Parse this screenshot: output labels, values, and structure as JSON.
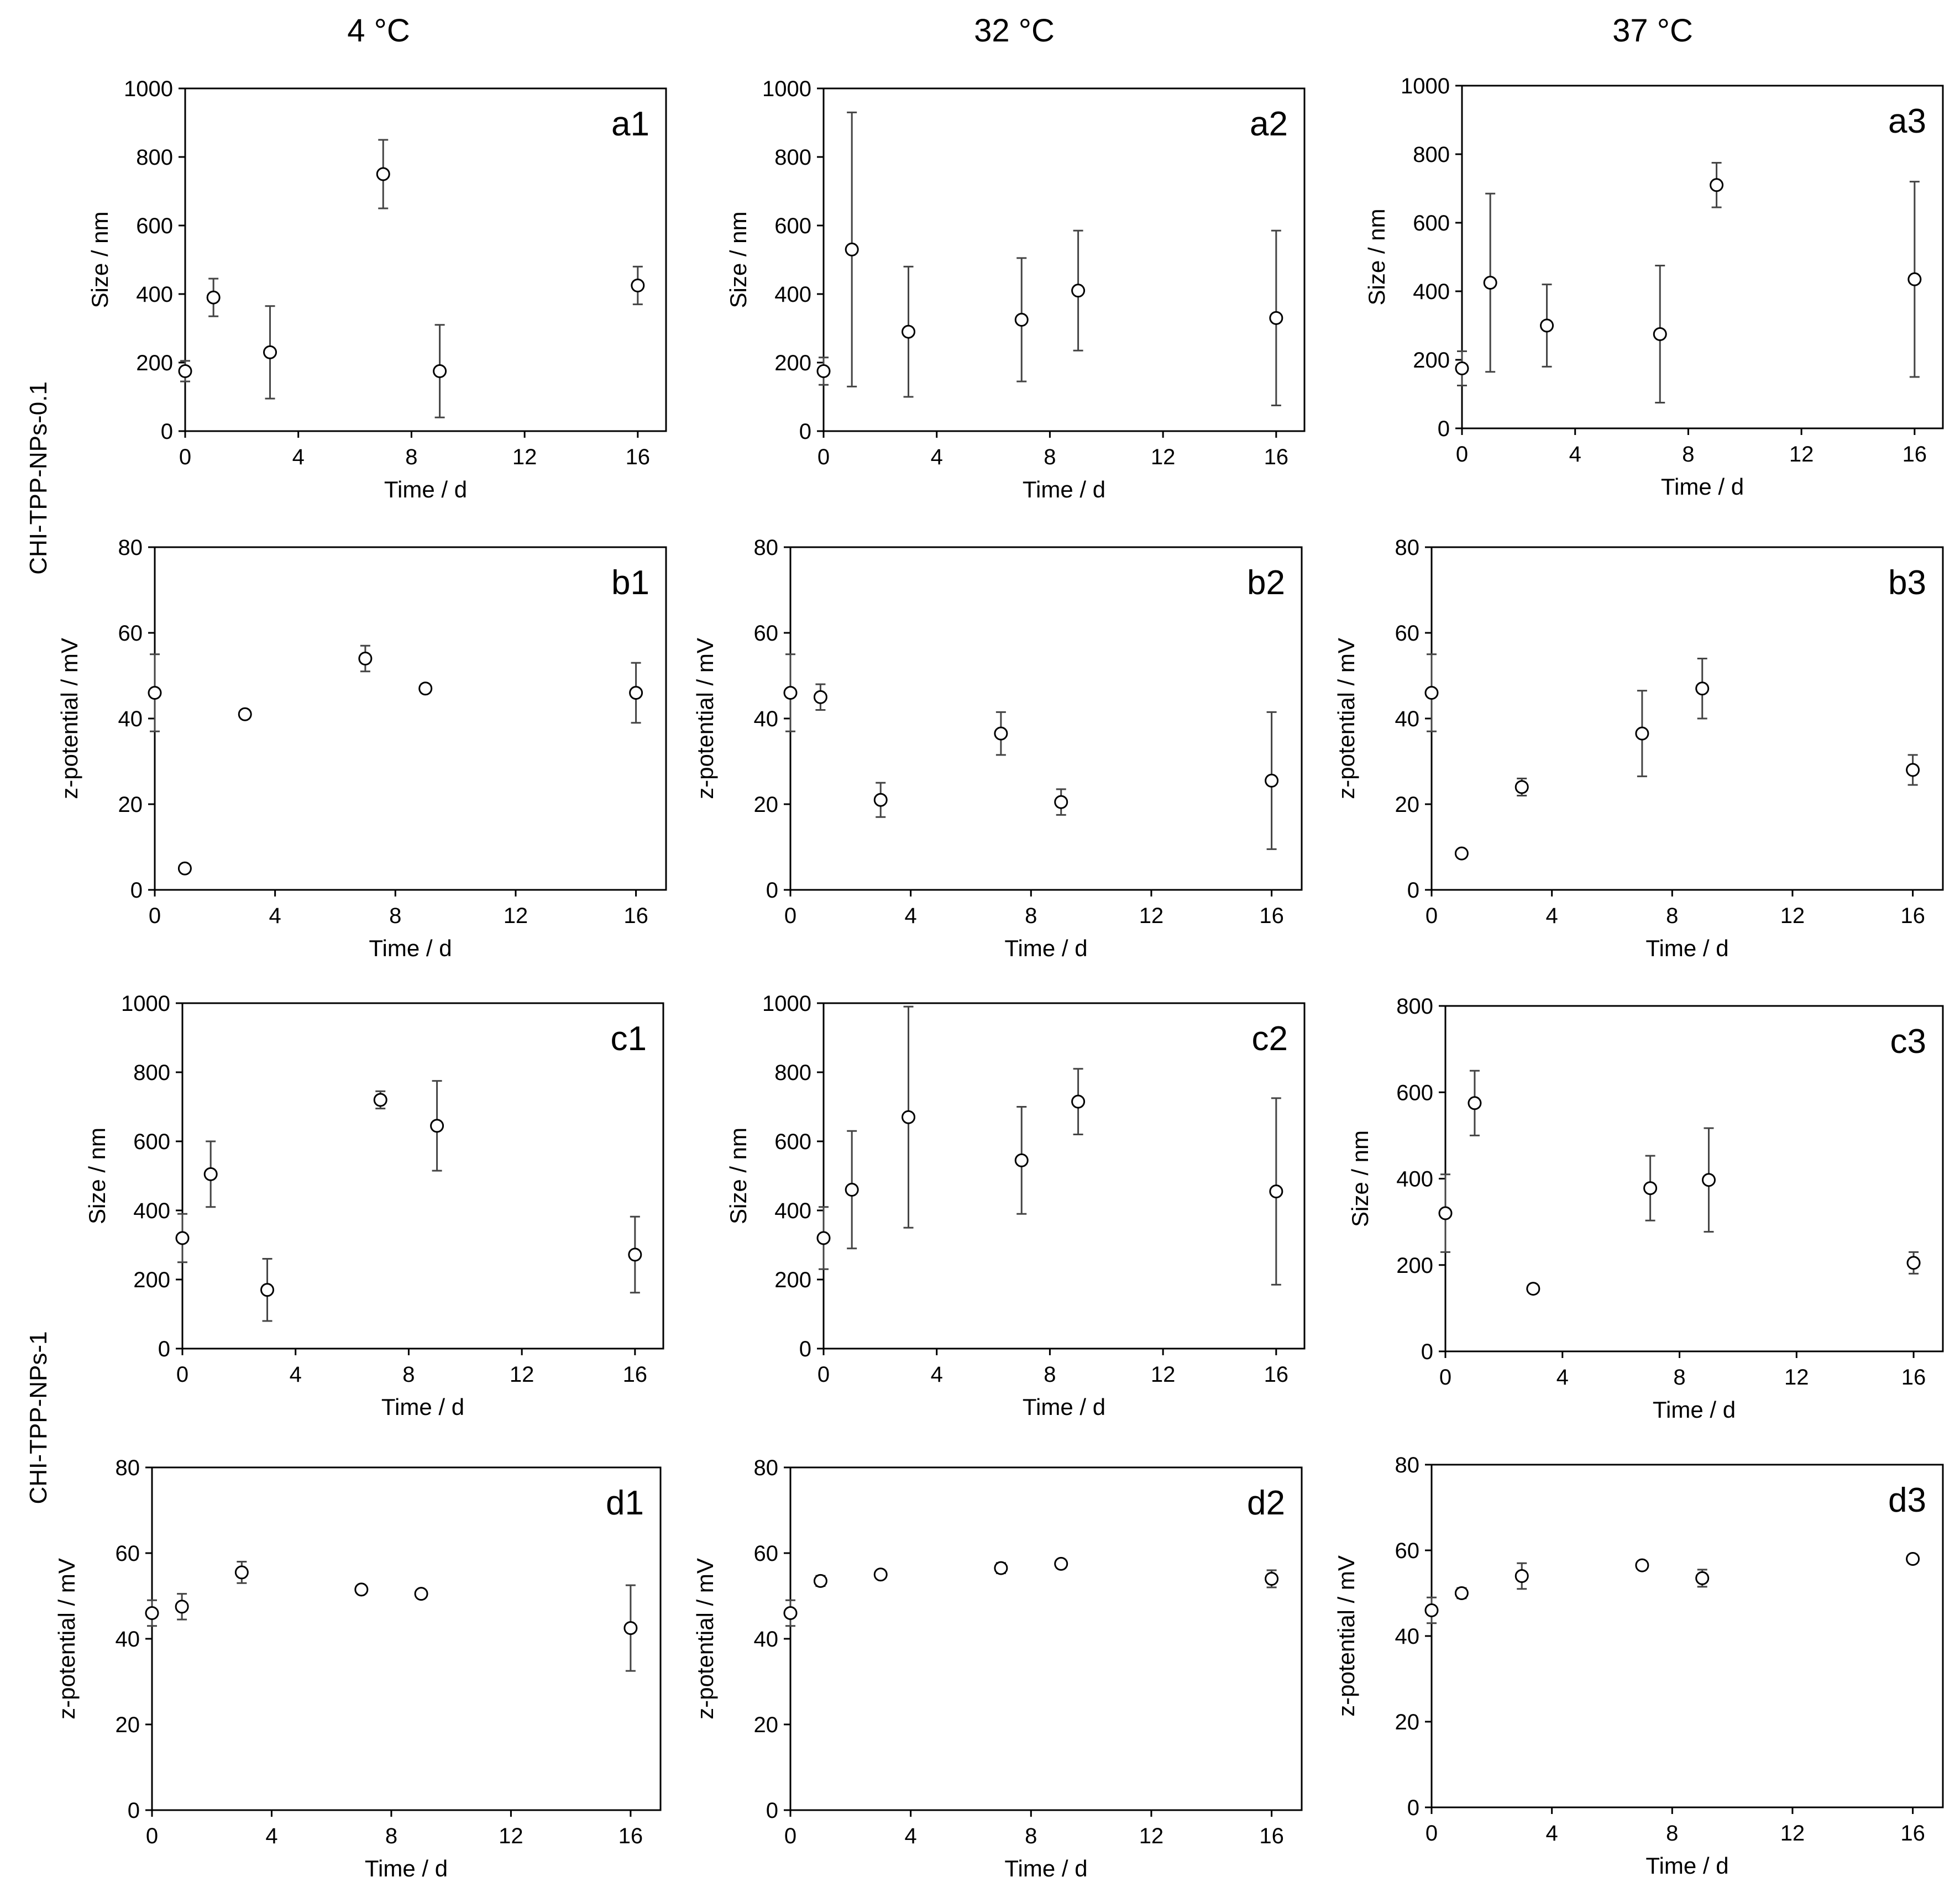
{
  "column_titles": [
    "4 °C",
    "32 °C",
    "37 °C"
  ],
  "row_labels": [
    "CHI-TPP-NPs-0.1",
    "CHI-TPP-NPs-1"
  ],
  "chart_data": [
    {
      "id": "a1",
      "type": "scatter",
      "panel_label": "a1",
      "xlabel": "Time / d",
      "ylabel": "Size / nm",
      "xlim": [
        0,
        17
      ],
      "ylim": [
        0,
        1000
      ],
      "xticks": [
        0,
        4,
        8,
        12,
        16
      ],
      "yticks": [
        0,
        200,
        400,
        600,
        800,
        1000
      ],
      "x": [
        0,
        1,
        3,
        7,
        9,
        16
      ],
      "y": [
        175,
        390,
        230,
        750,
        175,
        425
      ],
      "err": [
        30,
        55,
        135,
        100,
        135,
        55
      ]
    },
    {
      "id": "a2",
      "type": "scatter",
      "panel_label": "a2",
      "xlabel": "Time / d",
      "ylabel": "Size / nm",
      "xlim": [
        0,
        17
      ],
      "ylim": [
        0,
        1000
      ],
      "xticks": [
        0,
        4,
        8,
        12,
        16
      ],
      "yticks": [
        0,
        200,
        400,
        600,
        800,
        1000
      ],
      "x": [
        0,
        1,
        3,
        7,
        9,
        16
      ],
      "y": [
        175,
        530,
        290,
        325,
        410,
        330
      ],
      "err": [
        40,
        400,
        190,
        180,
        175,
        255
      ]
    },
    {
      "id": "a3",
      "type": "scatter",
      "panel_label": "a3",
      "xlabel": "Time / d",
      "ylabel": "Size / nm",
      "xlim": [
        0,
        17
      ],
      "ylim": [
        0,
        1000
      ],
      "xticks": [
        0,
        4,
        8,
        12,
        16
      ],
      "yticks": [
        0,
        200,
        400,
        600,
        800,
        1000
      ],
      "x": [
        0,
        1,
        3,
        7,
        9,
        16
      ],
      "y": [
        175,
        425,
        300,
        275,
        710,
        435
      ],
      "err": [
        50,
        260,
        120,
        200,
        65,
        285
      ]
    },
    {
      "id": "b1",
      "type": "scatter",
      "panel_label": "b1",
      "xlabel": "Time / d",
      "ylabel": "z-potential / mV",
      "xlim": [
        0,
        17
      ],
      "ylim": [
        0,
        80
      ],
      "xticks": [
        0,
        4,
        8,
        12,
        16
      ],
      "yticks": [
        0,
        20,
        40,
        60,
        80
      ],
      "x": [
        0,
        1,
        3,
        7,
        9,
        16
      ],
      "y": [
        46,
        5,
        41,
        54,
        47,
        46
      ],
      "err": [
        9,
        0.8,
        1,
        3,
        1,
        7
      ]
    },
    {
      "id": "b2",
      "type": "scatter",
      "panel_label": "b2",
      "xlabel": "Time / d",
      "ylabel": "z-potential / mV",
      "xlim": [
        0,
        17
      ],
      "ylim": [
        0,
        80
      ],
      "xticks": [
        0,
        4,
        8,
        12,
        16
      ],
      "yticks": [
        0,
        20,
        40,
        60,
        80
      ],
      "x": [
        0,
        1,
        3,
        7,
        9,
        16
      ],
      "y": [
        46,
        45,
        21,
        36.5,
        20.5,
        25.5
      ],
      "err": [
        9,
        3,
        4,
        5,
        3,
        16
      ]
    },
    {
      "id": "b3",
      "type": "scatter",
      "panel_label": "b3",
      "xlabel": "Time / d",
      "ylabel": "z-potential / mV",
      "xlim": [
        0,
        17
      ],
      "ylim": [
        0,
        80
      ],
      "xticks": [
        0,
        4,
        8,
        12,
        16
      ],
      "yticks": [
        0,
        20,
        40,
        60,
        80
      ],
      "x": [
        0,
        1,
        3,
        7,
        9,
        16
      ],
      "y": [
        46,
        8.5,
        24,
        36.5,
        47,
        28
      ],
      "err": [
        9,
        0.8,
        2,
        10,
        7,
        3.5
      ]
    },
    {
      "id": "c1",
      "type": "scatter",
      "panel_label": "c1",
      "xlabel": "Time / d",
      "ylabel": "Size / nm",
      "xlim": [
        0,
        17
      ],
      "ylim": [
        0,
        1000
      ],
      "xticks": [
        0,
        4,
        8,
        12,
        16
      ],
      "yticks": [
        0,
        200,
        400,
        600,
        800,
        1000
      ],
      "x": [
        0,
        1,
        3,
        7,
        9,
        16
      ],
      "y": [
        320,
        505,
        170,
        720,
        645,
        272
      ],
      "err": [
        70,
        95,
        90,
        25,
        130,
        110
      ]
    },
    {
      "id": "c2",
      "type": "scatter",
      "panel_label": "c2",
      "xlabel": "Time / d",
      "ylabel": "Size / nm",
      "xlim": [
        0,
        17
      ],
      "ylim": [
        0,
        1000
      ],
      "xticks": [
        0,
        4,
        8,
        12,
        16
      ],
      "yticks": [
        0,
        200,
        400,
        600,
        800,
        1000
      ],
      "x": [
        0,
        1,
        3,
        7,
        9,
        16
      ],
      "y": [
        320,
        460,
        670,
        545,
        715,
        455
      ],
      "err": [
        90,
        170,
        320,
        155,
        95,
        270
      ]
    },
    {
      "id": "c3",
      "type": "scatter",
      "panel_label": "c3",
      "xlabel": "Time / d",
      "ylabel": "Size / nm",
      "xlim": [
        0,
        17
      ],
      "ylim": [
        0,
        800
      ],
      "xticks": [
        0,
        4,
        8,
        12,
        16
      ],
      "yticks": [
        0,
        200,
        400,
        600,
        800
      ],
      "x": [
        0,
        1,
        3,
        7,
        9,
        16
      ],
      "y": [
        320,
        575,
        145,
        378,
        397,
        205
      ],
      "err": [
        90,
        75,
        5,
        75,
        120,
        25
      ]
    },
    {
      "id": "d1",
      "type": "scatter",
      "panel_label": "d1",
      "xlabel": "Time / d",
      "ylabel": "z-potential / mV",
      "xlim": [
        0,
        17
      ],
      "ylim": [
        0,
        80
      ],
      "xticks": [
        0,
        4,
        8,
        12,
        16
      ],
      "yticks": [
        0,
        20,
        40,
        60,
        80
      ],
      "x": [
        0,
        1,
        3,
        7,
        9,
        16
      ],
      "y": [
        46,
        47.5,
        55.5,
        51.5,
        50.5,
        42.5
      ],
      "err": [
        3,
        3,
        2.5,
        0.8,
        0.8,
        10
      ]
    },
    {
      "id": "d2",
      "type": "scatter",
      "panel_label": "d2",
      "xlabel": "Time / d",
      "ylabel": "z-potential / mV",
      "xlim": [
        0,
        17
      ],
      "ylim": [
        0,
        80
      ],
      "xticks": [
        0,
        4,
        8,
        12,
        16
      ],
      "yticks": [
        0,
        20,
        40,
        60,
        80
      ],
      "x": [
        0,
        1,
        3,
        7,
        9,
        16
      ],
      "y": [
        46,
        53.5,
        55,
        56.5,
        57.5,
        54
      ],
      "err": [
        3,
        1.2,
        0.8,
        1.2,
        1,
        2
      ]
    },
    {
      "id": "d3",
      "type": "scatter",
      "panel_label": "d3",
      "xlabel": "Time / d",
      "ylabel": "z-potential / mV",
      "xlim": [
        0,
        17
      ],
      "ylim": [
        0,
        80
      ],
      "xticks": [
        0,
        4,
        8,
        12,
        16
      ],
      "yticks": [
        0,
        20,
        40,
        60,
        80
      ],
      "x": [
        0,
        1,
        3,
        7,
        9,
        16
      ],
      "y": [
        46,
        50,
        54,
        56.5,
        53.5,
        58
      ],
      "err": [
        3,
        1.2,
        3,
        0.8,
        2,
        1
      ]
    }
  ]
}
